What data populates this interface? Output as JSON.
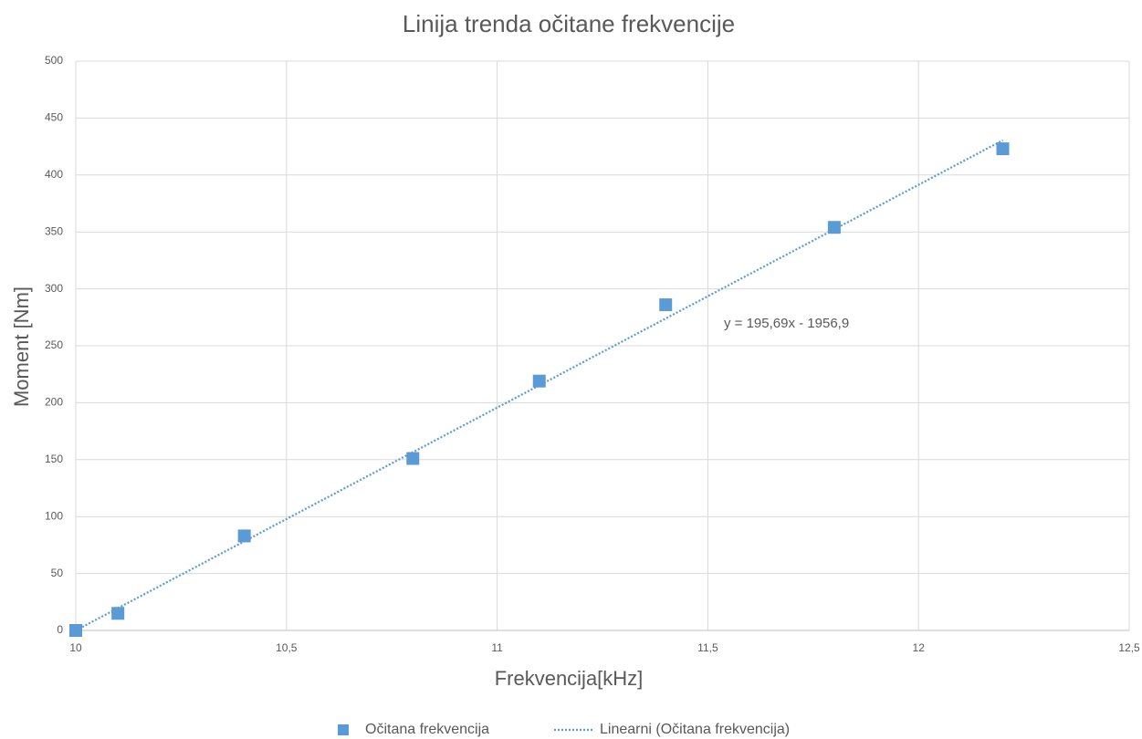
{
  "chart_data": {
    "type": "scatter",
    "title": "Linija trenda očitane frekvencije",
    "x_label": "Frekvencija[kHz]",
    "y_label": "Moment [Nm]",
    "annotation": "y = 195,69x - 1956,9",
    "series": [
      {
        "name": "Očitana frekvencija",
        "color": "#5b9bd5",
        "marker": "square",
        "x": [
          10,
          10.1,
          10.4,
          10.8,
          11.1,
          11.4,
          11.8,
          12.2
        ],
        "values": [
          0,
          15,
          83,
          151,
          219,
          286,
          354,
          423
        ]
      },
      {
        "name": "Linearni (Očitana frekvencija)",
        "color": "#5b9bd5",
        "line_style": "dotted",
        "x": [
          10,
          12.2
        ],
        "values": [
          0,
          430.5
        ]
      }
    ],
    "xlim": [
      10,
      12.5
    ],
    "xticks": [
      10,
      {
        "value": 10.5,
        "label": "10,5"
      },
      11,
      {
        "value": 11.5,
        "label": "11,5"
      },
      12,
      {
        "value": 12.5,
        "label": "12,5"
      }
    ],
    "ylim": [
      0,
      500
    ],
    "yticks": [
      0,
      50,
      100,
      150,
      200,
      250,
      300,
      350,
      400,
      450,
      500
    ],
    "grid": true
  }
}
